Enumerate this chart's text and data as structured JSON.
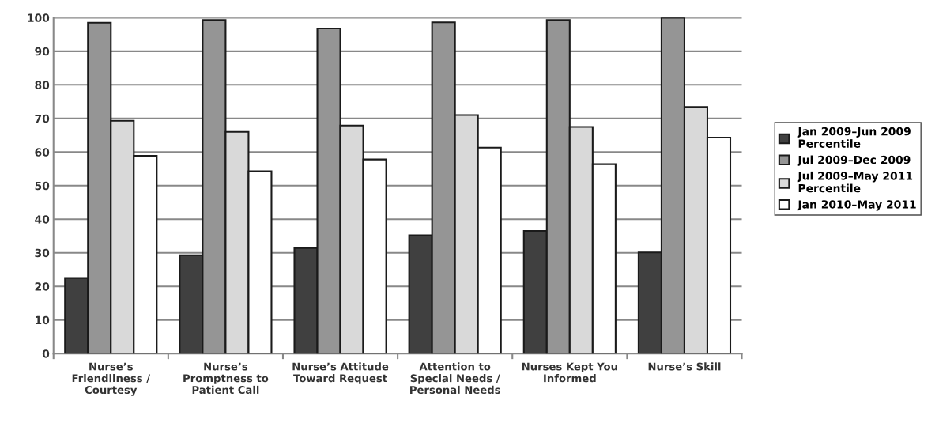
{
  "chart_data": {
    "type": "bar",
    "categories": [
      "Nurse’s\nFriendliness /\nCourtesy",
      "Nurse’s\nPromptness to\nPatient Call",
      "Nurse’s Attitude\nToward Request",
      "Attention to\nSpecial Needs /\nPersonal Needs",
      "Nurses Kept You\nInformed",
      "Nurse’s Skill"
    ],
    "series": [
      {
        "name": "Jan 2009–Jun 2009\nPercentile",
        "color": "#404040",
        "values": [
          22.5,
          29.3,
          31.4,
          35.2,
          36.5,
          30.1
        ]
      },
      {
        "name": "Jul 2009–Dec 2009",
        "color": "#959595",
        "values": [
          98.5,
          99.3,
          96.8,
          98.6,
          99.3,
          100
        ]
      },
      {
        "name": "Jul 2009–May 2011\nPercentile",
        "color": "#d9d9d9",
        "values": [
          69.3,
          66.0,
          67.9,
          71.0,
          67.5,
          73.4
        ]
      },
      {
        "name": "Jan 2010–May 2011",
        "color": "#ffffff",
        "values": [
          58.9,
          54.3,
          57.8,
          61.3,
          56.4,
          64.3
        ]
      }
    ],
    "ylim": [
      0,
      100
    ],
    "yticks": [
      0,
      10,
      20,
      30,
      40,
      50,
      60,
      70,
      80,
      90,
      100
    ],
    "grid": "y",
    "legend": "right"
  }
}
